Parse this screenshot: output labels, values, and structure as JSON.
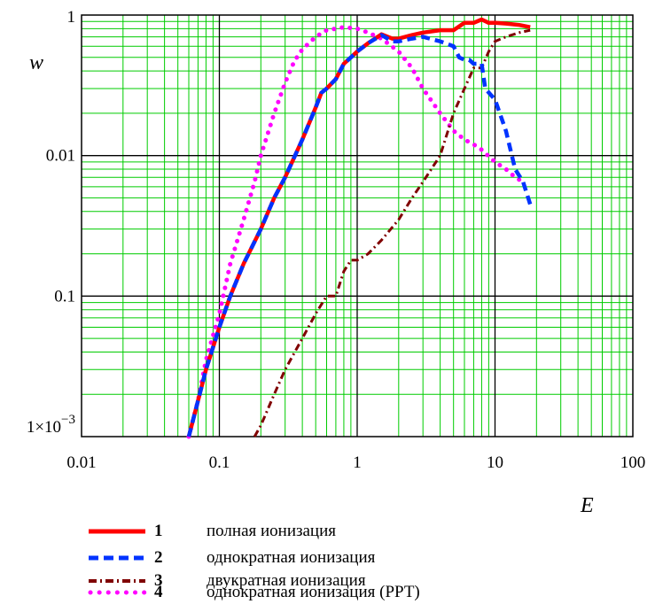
{
  "chart_data": {
    "type": "line",
    "xlabel": "E",
    "ylabel": "w",
    "xscale": "log",
    "yscale": "log",
    "xlim": [
      0.01,
      100
    ],
    "ylim": [
      0.001,
      1
    ],
    "xtick_labels": [
      "0.01",
      "0.1",
      "1",
      "10",
      "100"
    ],
    "ytick_labels": [
      "1×10",
      "0.1",
      "0.01",
      "1"
    ],
    "ytick_exponent": "−3",
    "grid": true,
    "grid_color": "#00cc00",
    "legend_placement": "below",
    "series": [
      {
        "name": "1",
        "label": "полная ионизация",
        "color": "#ff0000",
        "style": "solid",
        "x": [
          0.06,
          0.07,
          0.08,
          0.1,
          0.12,
          0.15,
          0.2,
          0.25,
          0.3,
          0.4,
          0.5,
          0.55,
          0.6,
          0.7,
          0.8,
          0.9,
          1.0,
          1.2,
          1.5,
          1.8,
          2.0,
          2.5,
          3.0,
          4.0,
          5.0,
          6.0,
          7.0,
          8.0,
          9.0,
          10,
          12,
          15,
          18
        ],
        "y": [
          0.001,
          0.0018,
          0.003,
          0.006,
          0.01,
          0.017,
          0.03,
          0.05,
          0.07,
          0.13,
          0.22,
          0.28,
          0.3,
          0.35,
          0.45,
          0.5,
          0.55,
          0.63,
          0.73,
          0.68,
          0.68,
          0.72,
          0.75,
          0.78,
          0.78,
          0.88,
          0.88,
          0.93,
          0.88,
          0.88,
          0.87,
          0.85,
          0.82
        ]
      },
      {
        "name": "2",
        "label": "однократная ионизация",
        "color": "#0033ff",
        "style": "dashed",
        "x": [
          0.06,
          0.07,
          0.08,
          0.1,
          0.12,
          0.15,
          0.2,
          0.25,
          0.3,
          0.4,
          0.5,
          0.55,
          0.6,
          0.7,
          0.8,
          0.9,
          1.0,
          1.2,
          1.5,
          1.8,
          2.0,
          2.5,
          3.0,
          4.0,
          5.0,
          5.5,
          6.0,
          6.5,
          7.0,
          8.0,
          8.5,
          10,
          12,
          14,
          16,
          18
        ],
        "y": [
          0.001,
          0.0018,
          0.003,
          0.006,
          0.01,
          0.017,
          0.03,
          0.05,
          0.07,
          0.13,
          0.22,
          0.28,
          0.3,
          0.35,
          0.45,
          0.5,
          0.55,
          0.63,
          0.72,
          0.65,
          0.65,
          0.68,
          0.7,
          0.65,
          0.6,
          0.5,
          0.48,
          0.48,
          0.45,
          0.45,
          0.3,
          0.25,
          0.15,
          0.08,
          0.065,
          0.045
        ]
      },
      {
        "name": "3",
        "label": "двукратная ионизация",
        "color": "#800000",
        "style": "dashdot",
        "x": [
          0.18,
          0.2,
          0.25,
          0.3,
          0.4,
          0.5,
          0.6,
          0.7,
          0.8,
          0.9,
          1.0,
          1.2,
          1.5,
          2.0,
          2.5,
          3.0,
          4.0,
          5.0,
          6.0,
          7.0,
          8.0,
          9.0,
          10,
          12,
          15,
          18
        ],
        "y": [
          0.001,
          0.0012,
          0.002,
          0.003,
          0.005,
          0.0075,
          0.01,
          0.01,
          0.015,
          0.018,
          0.018,
          0.02,
          0.025,
          0.035,
          0.05,
          0.065,
          0.1,
          0.2,
          0.3,
          0.42,
          0.42,
          0.55,
          0.65,
          0.7,
          0.75,
          0.78
        ]
      },
      {
        "name": "4",
        "label": "однократная ионизация (РРТ)",
        "color": "#ff00ff",
        "style": "dotted",
        "x": [
          0.06,
          0.07,
          0.08,
          0.1,
          0.12,
          0.15,
          0.18,
          0.2,
          0.25,
          0.3,
          0.35,
          0.4,
          0.5,
          0.6,
          0.7,
          0.8,
          1.0,
          1.2,
          1.5,
          2.0,
          2.5,
          3.0,
          4.0,
          5.0,
          6.0,
          7.0,
          8.0,
          10,
          12,
          14,
          16
        ],
        "y": [
          0.001,
          0.0018,
          0.0035,
          0.0075,
          0.017,
          0.035,
          0.065,
          0.1,
          0.2,
          0.33,
          0.47,
          0.57,
          0.7,
          0.78,
          0.8,
          0.82,
          0.8,
          0.75,
          0.68,
          0.55,
          0.42,
          0.3,
          0.2,
          0.15,
          0.13,
          0.12,
          0.11,
          0.09,
          0.08,
          0.07,
          0.065
        ]
      }
    ]
  }
}
